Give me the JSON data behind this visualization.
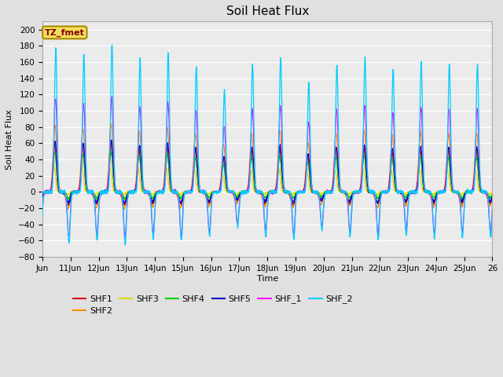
{
  "title": "Soil Heat Flux",
  "ylabel": "Soil Heat Flux",
  "xlabel": "Time",
  "annotation": "TZ_fmet",
  "ylim": [
    -80,
    210
  ],
  "yticks": [
    -80,
    -60,
    -40,
    -20,
    0,
    20,
    40,
    60,
    80,
    100,
    120,
    140,
    160,
    180,
    200
  ],
  "series": {
    "SHF1": {
      "color": "#dd0000",
      "lw": 0.8,
      "zorder": 5
    },
    "SHF2": {
      "color": "#ff8800",
      "lw": 0.8,
      "zorder": 4
    },
    "SHF3": {
      "color": "#dddd00",
      "lw": 0.8,
      "zorder": 3
    },
    "SHF4": {
      "color": "#00cc00",
      "lw": 0.8,
      "zorder": 6
    },
    "SHF5": {
      "color": "#0000cc",
      "lw": 0.8,
      "zorder": 7
    },
    "SHF_1": {
      "color": "#ff00ff",
      "lw": 0.8,
      "zorder": 8
    },
    "SHF_2": {
      "color": "#00ccff",
      "lw": 0.9,
      "zorder": 9
    }
  },
  "xtick_labels": [
    "Jun",
    "11Jun",
    "12Jun",
    "13Jun",
    "14Jun",
    "15Jun",
    "16Jun",
    "17Jun",
    "18Jun",
    "19Jun",
    "20Jun",
    "21Jun",
    "22Jun",
    "23Jun",
    "24Jun",
    "25Jun",
    "26"
  ],
  "n_points": 3200,
  "background_color": "#e0e0e0",
  "plot_bg_color": "#ebebeb",
  "title_fontsize": 11,
  "label_fontsize": 8,
  "tick_fontsize": 7.5
}
